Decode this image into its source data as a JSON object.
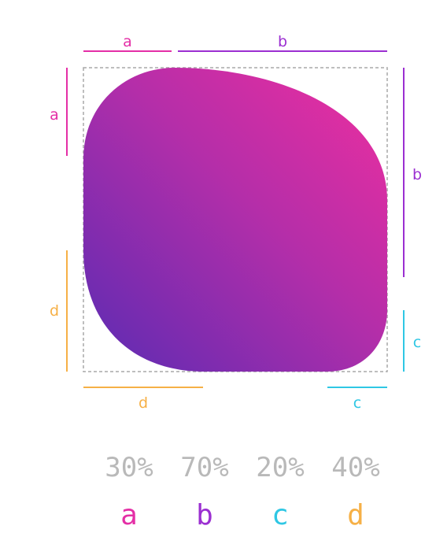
{
  "colors": {
    "a": "#e42fa6",
    "b": "#9b2fd1",
    "c": "#2fc7e4",
    "d": "#f6b046",
    "value_text": "#b9b9b9",
    "gradient_start": "#5b2bb3",
    "gradient_end": "#ef2f9f",
    "dashed_box": "#a9a9a9"
  },
  "measure_labels": {
    "top_a": "a",
    "top_b": "b",
    "left_a": "a",
    "left_d": "d",
    "right_b": "b",
    "right_c": "c",
    "bottom_d": "d",
    "bottom_c": "c"
  },
  "legend": [
    {
      "letter": "a",
      "value": "30%"
    },
    {
      "letter": "b",
      "value": "70%"
    },
    {
      "letter": "c",
      "value": "20%"
    },
    {
      "letter": "d",
      "value": "40%"
    }
  ]
}
